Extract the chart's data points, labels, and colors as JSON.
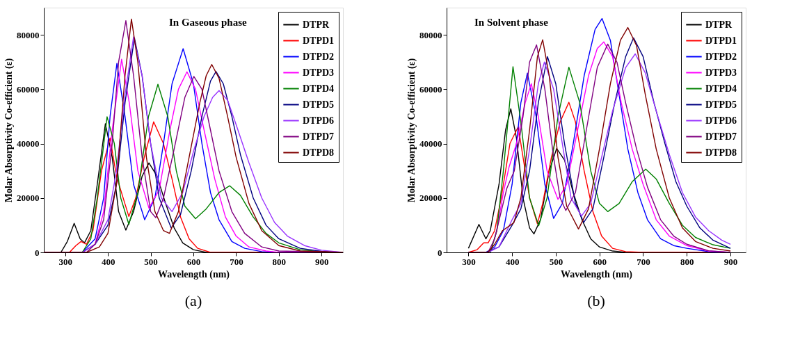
{
  "chart_data": [
    {
      "type": "line",
      "title": "(a)",
      "xlabel": "Wavelength (nm)",
      "ylabel": "Molar Absorptivity Co-efficient (ε)",
      "xlim": [
        250,
        950
      ],
      "xticks": [
        300,
        400,
        500,
        600,
        700,
        800,
        900
      ],
      "ylim": [
        0,
        90000
      ],
      "yticks": [
        0,
        20000,
        40000,
        60000,
        80000
      ],
      "grid": false,
      "legend": "top right",
      "annotations": [
        "In Gaseous phase"
      ],
      "series": [
        {
          "name": "DTPR",
          "color": "#000000",
          "x": [
            250,
            290,
            305,
            321,
            335,
            345,
            360,
            375,
            394,
            410,
            425,
            442,
            460,
            480,
            496,
            515,
            535,
            555,
            575,
            600,
            630,
            950
          ],
          "values": [
            0,
            0,
            4000,
            10700,
            5000,
            3500,
            8000,
            25000,
            47300,
            35000,
            15000,
            8200,
            15000,
            28000,
            32900,
            28000,
            18000,
            9000,
            3500,
            1000,
            0,
            0
          ]
        },
        {
          "name": "DTPD1",
          "color": "#ff0000",
          "x": [
            250,
            310,
            325,
            337,
            350,
            365,
            385,
            405,
            420,
            449,
            465,
            485,
            507,
            530,
            550,
            570,
            590,
            610,
            640,
            950
          ],
          "values": [
            0,
            0,
            2500,
            4000,
            3000,
            8000,
            30000,
            42100,
            28000,
            13200,
            20000,
            35000,
            48000,
            40000,
            27000,
            13000,
            5000,
            1500,
            0,
            0
          ]
        },
        {
          "name": "DTPD2",
          "color": "#0000ff",
          "x": [
            250,
            340,
            370,
            390,
            405,
            421,
            440,
            460,
            486,
            510,
            530,
            550,
            576,
            600,
            620,
            640,
            660,
            690,
            720,
            760,
            800,
            950
          ],
          "values": [
            0,
            0,
            5000,
            20000,
            50000,
            69500,
            50000,
            25000,
            12000,
            20000,
            40000,
            62000,
            74900,
            62000,
            40000,
            22000,
            12000,
            4000,
            1500,
            300,
            0,
            0
          ]
        },
        {
          "name": "DTPD3",
          "color": "#ff00ff",
          "x": [
            250,
            340,
            370,
            390,
            410,
            432,
            450,
            470,
            496,
            520,
            545,
            565,
            585,
            605,
            625,
            650,
            675,
            700,
            730,
            770,
            800,
            950
          ],
          "values": [
            0,
            0,
            3000,
            15000,
            45000,
            71000,
            55000,
            30000,
            16300,
            23000,
            45000,
            60000,
            66400,
            60000,
            45000,
            27000,
            13000,
            6000,
            2000,
            500,
            0,
            0
          ]
        },
        {
          "name": "DTPD4",
          "color": "#008000",
          "x": [
            250,
            340,
            360,
            375,
            398,
            415,
            430,
            449,
            470,
            495,
            517,
            540,
            560,
            580,
            605,
            630,
            660,
            685,
            710,
            740,
            770,
            800,
            850,
            900,
            950
          ],
          "values": [
            0,
            0,
            5000,
            20000,
            49900,
            40000,
            20000,
            10300,
            22000,
            50000,
            61800,
            50000,
            30000,
            17000,
            12400,
            16000,
            22000,
            24500,
            21000,
            13000,
            7000,
            3500,
            1000,
            200,
            0
          ]
        },
        {
          "name": "DTPD5",
          "color": "#000080",
          "x": [
            250,
            340,
            370,
            400,
            420,
            440,
            462,
            480,
            500,
            520,
            548,
            570,
            595,
            620,
            640,
            653,
            670,
            690,
            710,
            740,
            770,
            800,
            850,
            900,
            950
          ],
          "values": [
            0,
            0,
            3000,
            10000,
            25000,
            55000,
            78900,
            65000,
            40000,
            20000,
            9000,
            14000,
            30000,
            50000,
            63000,
            66500,
            62000,
            50000,
            36000,
            20000,
            10000,
            5000,
            1500,
            400,
            0
          ]
        },
        {
          "name": "DTPD6",
          "color": "#9933ff",
          "x": [
            250,
            340,
            370,
            400,
            420,
            440,
            460,
            480,
            500,
            525,
            550,
            575,
            600,
            625,
            645,
            660,
            680,
            700,
            730,
            760,
            790,
            820,
            860,
            900,
            950
          ],
          "values": [
            0,
            0,
            3000,
            12000,
            30000,
            58000,
            79300,
            65000,
            40000,
            20000,
            15000,
            22000,
            37000,
            50000,
            57000,
            59500,
            56000,
            47000,
            33000,
            20000,
            11000,
            6000,
            2500,
            800,
            0
          ]
        },
        {
          "name": "DTPD7",
          "color": "#800080",
          "x": [
            250,
            350,
            370,
            390,
            410,
            425,
            442,
            460,
            480,
            500,
            512,
            530,
            555,
            580,
            601,
            620,
            640,
            660,
            690,
            720,
            760,
            800,
            950
          ],
          "values": [
            0,
            0,
            3000,
            12000,
            40000,
            70000,
            85200,
            65000,
            35000,
            15000,
            12800,
            20000,
            38000,
            57000,
            64700,
            60000,
            45000,
            30000,
            15000,
            7000,
            2000,
            500,
            0
          ]
        },
        {
          "name": "DTPD8",
          "color": "#800000",
          "x": [
            250,
            350,
            380,
            400,
            420,
            440,
            455,
            470,
            490,
            510,
            530,
            544,
            565,
            590,
            615,
            630,
            643,
            660,
            680,
            700,
            730,
            760,
            800,
            850,
            950
          ],
          "values": [
            0,
            0,
            2000,
            7000,
            25000,
            65000,
            85800,
            70000,
            35000,
            15000,
            8000,
            7000,
            15000,
            35000,
            55000,
            65000,
            69100,
            64000,
            50000,
            35000,
            18000,
            8000,
            2500,
            500,
            0
          ]
        }
      ]
    },
    {
      "type": "line",
      "title": "(b)",
      "xlabel": "Wavelength (nm)",
      "ylabel": "Molar Absorptivity Co-efficient (ε)",
      "xlim": [
        250,
        935
      ],
      "xticks": [
        300,
        400,
        500,
        600,
        700,
        800,
        900
      ],
      "ylim": [
        0,
        90000
      ],
      "yticks": [
        0,
        20000,
        40000,
        60000,
        80000
      ],
      "grid": false,
      "legend": "top right",
      "annotations": [
        "In Solvent phase"
      ],
      "series": [
        {
          "name": "DTPR",
          "color": "#000000",
          "x": [
            300,
            324,
            340,
            350,
            370,
            385,
            397,
            410,
            425,
            440,
            450,
            465,
            485,
            502,
            520,
            540,
            560,
            580,
            600,
            630,
            660,
            900
          ],
          "values": [
            1500,
            10300,
            5000,
            8000,
            25000,
            45000,
            52800,
            42000,
            20000,
            9000,
            6800,
            12000,
            30000,
            38200,
            34000,
            22000,
            12000,
            5000,
            2000,
            500,
            0,
            0
          ]
        },
        {
          "name": "DTPD1",
          "color": "#ff0000",
          "x": [
            300,
            320,
            335,
            345,
            360,
            375,
            395,
            414,
            425,
            440,
            458,
            470,
            490,
            510,
            530,
            545,
            565,
            585,
            605,
            630,
            660,
            700,
            900
          ],
          "values": [
            0,
            1000,
            3500,
            3500,
            8000,
            20000,
            40000,
            46200,
            35000,
            20000,
            10500,
            18000,
            35000,
            48000,
            55200,
            48000,
            30000,
            15000,
            6000,
            1500,
            300,
            0,
            0
          ]
        },
        {
          "name": "DTPD2",
          "color": "#0000ff",
          "x": [
            300,
            340,
            360,
            380,
            400,
            420,
            435,
            455,
            475,
            495,
            515,
            540,
            565,
            590,
            606,
            625,
            645,
            665,
            688,
            710,
            740,
            770,
            800,
            850,
            900
          ],
          "values": [
            0,
            0,
            2000,
            8000,
            25000,
            55000,
            65900,
            50000,
            25000,
            12500,
            18000,
            40000,
            65000,
            82000,
            86000,
            78000,
            58000,
            38000,
            22000,
            12000,
            5000,
            2500,
            1500,
            300,
            0
          ]
        },
        {
          "name": "DTPD3",
          "color": "#ff00ff",
          "x": [
            300,
            350,
            365,
            380,
            393,
            410,
            430,
            444,
            460,
            480,
            505,
            525,
            550,
            575,
            595,
            610,
            630,
            650,
            675,
            700,
            730,
            760,
            800,
            850,
            900
          ],
          "values": [
            0,
            0,
            8000,
            22000,
            31400,
            40000,
            55000,
            62000,
            50000,
            30000,
            19500,
            25000,
            45000,
            65000,
            75000,
            77400,
            72000,
            55000,
            38000,
            25000,
            12000,
            6000,
            2500,
            500,
            0
          ]
        },
        {
          "name": "DTPD4",
          "color": "#008000",
          "x": [
            300,
            350,
            365,
            380,
            402,
            420,
            440,
            461,
            480,
            505,
            530,
            555,
            580,
            600,
            619,
            645,
            675,
            706,
            730,
            760,
            790,
            820,
            860,
            900
          ],
          "values": [
            0,
            0,
            8000,
            30000,
            68300,
            48000,
            20000,
            9800,
            20000,
            50000,
            68100,
            55000,
            30000,
            18000,
            15000,
            18000,
            26000,
            30600,
            27000,
            18000,
            10000,
            5500,
            2800,
            1500
          ]
        },
        {
          "name": "DTPD5",
          "color": "#000080",
          "x": [
            300,
            340,
            370,
            400,
            420,
            440,
            460,
            481,
            500,
            520,
            545,
            564,
            585,
            610,
            635,
            660,
            678,
            700,
            725,
            750,
            775,
            800,
            830,
            860,
            900
          ],
          "values": [
            0,
            0,
            2000,
            10000,
            16000,
            30000,
            55000,
            72000,
            62000,
            40000,
            18000,
            11000,
            16000,
            35000,
            55000,
            72000,
            78900,
            72000,
            55000,
            40000,
            26000,
            17000,
            9000,
            4500,
            1500
          ]
        },
        {
          "name": "DTPD6",
          "color": "#9933ff",
          "x": [
            300,
            345,
            370,
            400,
            420,
            440,
            460,
            474,
            495,
            515,
            535,
            559,
            580,
            605,
            630,
            660,
            682,
            705,
            730,
            760,
            790,
            820,
            850,
            880,
            900
          ],
          "values": [
            0,
            0,
            2000,
            12000,
            18000,
            38000,
            62000,
            70000,
            60000,
            40000,
            20000,
            13400,
            18000,
            35000,
            52000,
            68000,
            73000,
            66000,
            52000,
            36000,
            22000,
            13000,
            8000,
            4500,
            3000
          ]
        },
        {
          "name": "DTPD7",
          "color": "#800080",
          "x": [
            300,
            345,
            360,
            375,
            388,
            405,
            425,
            440,
            456,
            475,
            495,
            510,
            523,
            545,
            570,
            595,
            619,
            640,
            660,
            685,
            710,
            740,
            770,
            800,
            850,
            900
          ],
          "values": [
            0,
            0,
            5000,
            15000,
            23600,
            30000,
            50000,
            70000,
            76300,
            60000,
            35000,
            20000,
            15400,
            22000,
            45000,
            68000,
            76600,
            70000,
            55000,
            38000,
            24000,
            12000,
            6000,
            3000,
            600,
            0
          ]
        },
        {
          "name": "DTPD8",
          "color": "#800000",
          "x": [
            300,
            345,
            360,
            378,
            404,
            420,
            440,
            458,
            470,
            485,
            505,
            525,
            552,
            575,
            600,
            625,
            648,
            665,
            685,
            705,
            730,
            760,
            790,
            820,
            860,
            900
          ],
          "values": [
            0,
            0,
            3000,
            8000,
            10900,
            20000,
            45000,
            72000,
            78200,
            65000,
            35000,
            17000,
            8600,
            16000,
            38000,
            62000,
            78000,
            82700,
            76000,
            58000,
            38000,
            20000,
            9000,
            4000,
            1500,
            500
          ]
        }
      ]
    }
  ]
}
